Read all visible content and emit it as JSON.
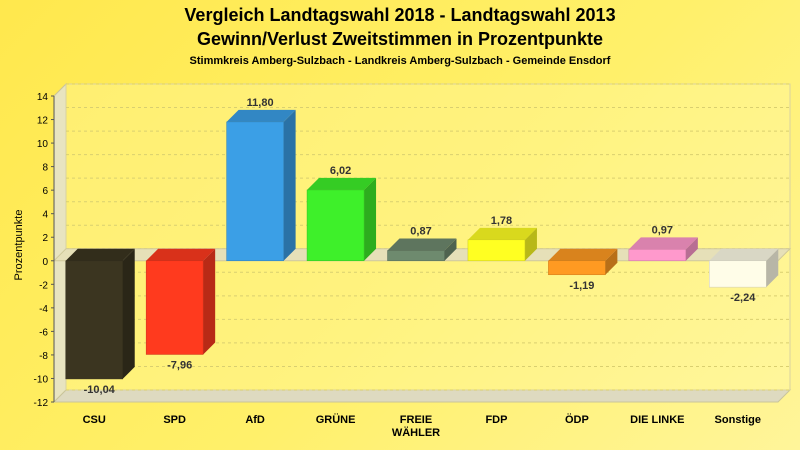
{
  "header": {
    "title_line1": "Vergleich Landtagswahl 2018 - Landtagswahl 2013",
    "title_line2": "Gewinn/Verlust Zweitstimmen in Prozentpunkte",
    "subtitle": "Stimmkreis Amberg-Sulzbach - Landkreis Amberg-Sulzbach - Gemeinde Ensdorf"
  },
  "chart_data": {
    "type": "bar",
    "title": "Vergleich Landtagswahl 2018 - Landtagswahl 2013",
    "subtitle": "Gewinn/Verlust Zweitstimmen in Prozentpunkte",
    "xlabel": "",
    "ylabel": "Prozentpunkte",
    "ylim": [
      -12,
      14
    ],
    "yticks": [
      14,
      12,
      10,
      8,
      6,
      4,
      2,
      0,
      -2,
      -4,
      -6,
      -8,
      -10,
      -12
    ],
    "grid": true,
    "categories": [
      [
        "CSU"
      ],
      [
        "SPD"
      ],
      [
        "AfD"
      ],
      [
        "GRÜNE"
      ],
      [
        "FREIE",
        "WÄHLER"
      ],
      [
        "FDP"
      ],
      [
        "ÖDP"
      ],
      [
        "DIE LINKE"
      ],
      [
        "Sonstige"
      ]
    ],
    "values": [
      -10.04,
      -7.96,
      11.8,
      6.02,
      0.87,
      1.78,
      -1.19,
      0.97,
      -2.24
    ],
    "labels": [
      "-10,04",
      "-7,96",
      "11,80",
      "6,02",
      "0,87",
      "1,78",
      "-1,19",
      "0,97",
      "-2,24"
    ],
    "colors": [
      "#3b3520",
      "#ff3a1e",
      "#3b9fe6",
      "#3ef02a",
      "#6e8a6e",
      "#ffff22",
      "#ff9a22",
      "#ff99cc",
      "#fffde8"
    ]
  }
}
